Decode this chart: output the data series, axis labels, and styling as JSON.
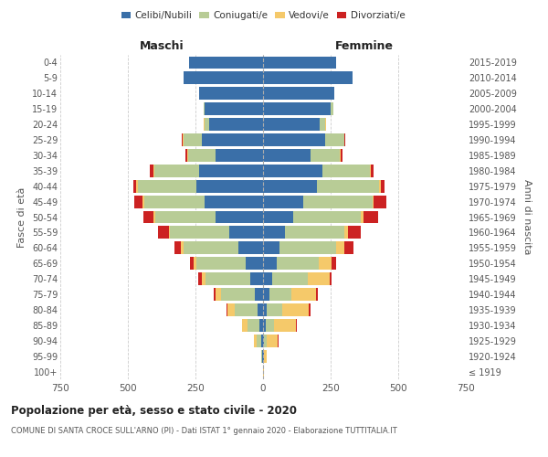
{
  "age_groups": [
    "100+",
    "95-99",
    "90-94",
    "85-89",
    "80-84",
    "75-79",
    "70-74",
    "65-69",
    "60-64",
    "55-59",
    "50-54",
    "45-49",
    "40-44",
    "35-39",
    "30-34",
    "25-29",
    "20-24",
    "15-19",
    "10-14",
    "5-9",
    "0-4"
  ],
  "birth_years": [
    "≤ 1919",
    "1920-1924",
    "1925-1929",
    "1930-1934",
    "1935-1939",
    "1940-1944",
    "1945-1949",
    "1950-1954",
    "1955-1959",
    "1960-1964",
    "1965-1969",
    "1970-1974",
    "1975-1979",
    "1980-1984",
    "1985-1989",
    "1990-1994",
    "1995-1999",
    "2000-2004",
    "2005-2009",
    "2010-2014",
    "2015-2019"
  ],
  "maschi": {
    "celibi": [
      1,
      3,
      6,
      12,
      20,
      32,
      48,
      65,
      90,
      125,
      175,
      215,
      245,
      235,
      175,
      225,
      200,
      215,
      235,
      295,
      275
    ],
    "coniugati": [
      0,
      3,
      18,
      45,
      85,
      125,
      165,
      180,
      205,
      218,
      225,
      225,
      218,
      168,
      102,
      68,
      16,
      5,
      0,
      0,
      0
    ],
    "vedovi": [
      0,
      2,
      10,
      22,
      28,
      18,
      12,
      12,
      10,
      6,
      6,
      6,
      6,
      4,
      3,
      3,
      2,
      0,
      0,
      0,
      0
    ],
    "divorziati": [
      0,
      0,
      0,
      0,
      2,
      6,
      16,
      12,
      22,
      38,
      38,
      32,
      12,
      12,
      6,
      6,
      0,
      0,
      0,
      0,
      0
    ]
  },
  "femmine": {
    "nubili": [
      0,
      2,
      5,
      10,
      15,
      25,
      35,
      50,
      60,
      80,
      110,
      150,
      200,
      220,
      175,
      230,
      210,
      250,
      265,
      330,
      270
    ],
    "coniugate": [
      0,
      3,
      10,
      30,
      55,
      80,
      130,
      155,
      210,
      220,
      250,
      255,
      230,
      175,
      110,
      70,
      20,
      10,
      0,
      0,
      0
    ],
    "vedove": [
      2,
      8,
      40,
      80,
      100,
      90,
      80,
      50,
      30,
      15,
      10,
      5,
      5,
      5,
      3,
      2,
      2,
      0,
      0,
      0,
      0
    ],
    "divorziate": [
      0,
      0,
      2,
      5,
      5,
      8,
      10,
      15,
      35,
      45,
      55,
      45,
      15,
      10,
      5,
      2,
      0,
      0,
      0,
      0,
      0
    ]
  },
  "colors": {
    "celibi": "#3a6fa8",
    "coniugati": "#b8cc96",
    "vedovi": "#f5c96a",
    "divorziati": "#cc2222"
  },
  "xlim": 750,
  "title": "Popolazione per età, sesso e stato civile - 2020",
  "subtitle": "COMUNE DI SANTA CROCE SULL'ARNO (PI) - Dati ISTAT 1° gennaio 2020 - Elaborazione TUTTITALIA.IT",
  "ylabel_left": "Fasce di età",
  "ylabel_right": "Anni di nascita",
  "xlabel_maschi": "Maschi",
  "xlabel_femmine": "Femmine"
}
